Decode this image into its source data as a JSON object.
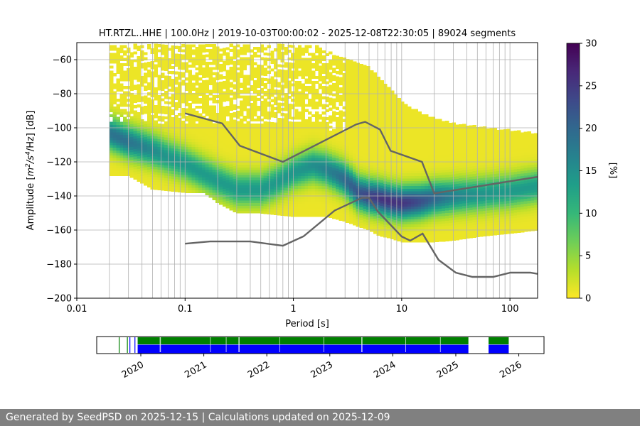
{
  "chart_data": [
    {
      "type": "heatmap",
      "title": "HT.RTZL..HHE | 100.0Hz | 2019-10-03T00:00:02 - 2025-12-08T22:30:05 | 89024 segments",
      "xlabel": "Period [s]",
      "ylabel_parts": {
        "prefix": "Amplitude [",
        "base1": "m",
        "exp1": "2",
        "slash1": "/",
        "base2": "s",
        "exp2": "4",
        "suffix": "/Hz] [dB]"
      },
      "xscale": "log",
      "xlim": [
        0.01,
        180
      ],
      "ylim": [
        -200,
        -50
      ],
      "x_ticks": [
        {
          "value": 0.01,
          "label": "0.01"
        },
        {
          "value": 0.1,
          "label": "0.1"
        },
        {
          "value": 1,
          "label": "1"
        },
        {
          "value": 10,
          "label": "10"
        },
        {
          "value": 100,
          "label": "100"
        }
      ],
      "y_ticks": [
        {
          "value": -60,
          "label": "−60"
        },
        {
          "value": -80,
          "label": "−80"
        },
        {
          "value": -100,
          "label": "−100"
        },
        {
          "value": -120,
          "label": "−120"
        },
        {
          "value": -140,
          "label": "−140"
        },
        {
          "value": -160,
          "label": "−160"
        },
        {
          "value": -180,
          "label": "−180"
        },
        {
          "value": -200,
          "label": "−200"
        }
      ],
      "grid": true,
      "psd_envelope": {
        "period": [
          0.02,
          0.03,
          0.05,
          0.07,
          0.1,
          0.15,
          0.2,
          0.3,
          0.5,
          0.7,
          1.0,
          1.5,
          2,
          3,
          4,
          5,
          6,
          8,
          10,
          15,
          20,
          30,
          50,
          100,
          180
        ],
        "upper": [
          -52,
          -52,
          -52,
          -52,
          -52,
          -52,
          -52,
          -52,
          -52,
          -52,
          -52,
          -52,
          -55,
          -60,
          -62,
          -65,
          -70,
          -78,
          -85,
          -92,
          -95,
          -98,
          -100,
          -102,
          -104
        ],
        "lower": [
          -128,
          -128,
          -136,
          -137,
          -138,
          -138,
          -144,
          -150,
          -150,
          -151,
          -152,
          -152,
          -152,
          -155,
          -158,
          -160,
          -163,
          -165,
          -167,
          -167,
          -167,
          -166,
          -164,
          -162,
          -160
        ],
        "mode": [
          -103,
          -108,
          -113,
          -117,
          -121,
          -127,
          -131,
          -136,
          -136,
          -132,
          -126,
          -122,
          -124,
          -130,
          -138,
          -140,
          -141,
          -143,
          -144,
          -143,
          -141,
          -140,
          -139,
          -137,
          -134
        ]
      },
      "new_high_noise_model": {
        "period": [
          0.1,
          0.22,
          0.32,
          0.8,
          3.8,
          4.6,
          6.3,
          7.9,
          15.4,
          20,
          180
        ],
        "db": [
          -91.5,
          -97.4,
          -110.5,
          -120,
          -98,
          -96.5,
          -101,
          -113.5,
          -120,
          -138.5,
          -128.8
        ]
      },
      "new_low_noise_model": {
        "period": [
          0.1,
          0.17,
          0.4,
          0.8,
          1.24,
          2.4,
          4.3,
          5,
          6,
          10,
          12,
          15.6,
          21.9,
          31.6,
          45,
          70,
          101,
          154,
          180
        ],
        "db": [
          -168,
          -166.7,
          -166.7,
          -169.2,
          -163.7,
          -148.6,
          -141.1,
          -141.1,
          -149,
          -163.8,
          -166.2,
          -162.1,
          -177.5,
          -185,
          -187.5,
          -187.5,
          -185,
          -185,
          -185.7
        ]
      }
    },
    {
      "type": "colorbar",
      "label": "[%]",
      "range": [
        0,
        30
      ],
      "ticks": [
        {
          "value": 0,
          "label": "0"
        },
        {
          "value": 5,
          "label": "5"
        },
        {
          "value": 10,
          "label": "10"
        },
        {
          "value": 15,
          "label": "15"
        },
        {
          "value": 20,
          "label": "20"
        },
        {
          "value": 25,
          "label": "25"
        },
        {
          "value": 30,
          "label": "30"
        }
      ],
      "colormap": [
        "#fde725",
        "#b5de2b",
        "#6ece58",
        "#35b779",
        "#1f9e89",
        "#26828e",
        "#31688e",
        "#3e4989",
        "#482878",
        "#440154"
      ]
    },
    {
      "type": "timeline",
      "x_ticks": [
        "2020",
        "2021",
        "2022",
        "2023",
        "2024",
        "2025",
        "2026"
      ],
      "start_year": 2019.3,
      "end_year": 2026.4,
      "series": [
        {
          "name": "available",
          "color": "#008000",
          "spans": [
            [
              2019.95,
              2025.2
            ],
            [
              2025.52,
              2025.84
            ]
          ]
        },
        {
          "name": "processed",
          "color": "#0000ff",
          "spans": [
            [
              2019.95,
              2025.2
            ],
            [
              2025.52,
              2025.84
            ]
          ]
        }
      ],
      "ticks_marks": [
        2019.65,
        2019.78,
        2019.82,
        2019.9
      ]
    }
  ],
  "footer": {
    "text": "Generated by SeedPSD on 2025-12-15 | Calculations updated on 2025-12-09"
  }
}
